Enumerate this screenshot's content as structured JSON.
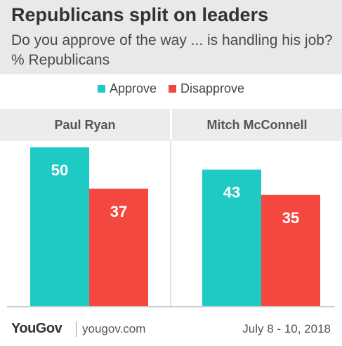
{
  "header": {
    "title": "Republicans split on leaders",
    "subtitle": "Do you approve of the way ... is handling his job? % Republicans"
  },
  "footer": {
    "logo": "YouGov",
    "site": "yougov.com",
    "date": "July 8 - 10, 2018"
  },
  "colors": {
    "approve": "#1ecbc4",
    "disapprove": "#f4473f",
    "header_bg": "#e9e9ea",
    "panel_bg": "#ececed"
  },
  "chart_data": {
    "type": "bar",
    "categories": [
      "Paul Ryan",
      "Mitch McConnell"
    ],
    "series": [
      {
        "name": "Approve",
        "values": [
          50,
          43
        ]
      },
      {
        "name": "Disapprove",
        "values": [
          37,
          35
        ]
      }
    ],
    "title": "Republicans split on leaders",
    "subtitle": "Do you approve of the way ... is handling his job? % Republicans",
    "ylim": [
      0,
      50
    ],
    "legend": "top-center",
    "grid": false
  }
}
